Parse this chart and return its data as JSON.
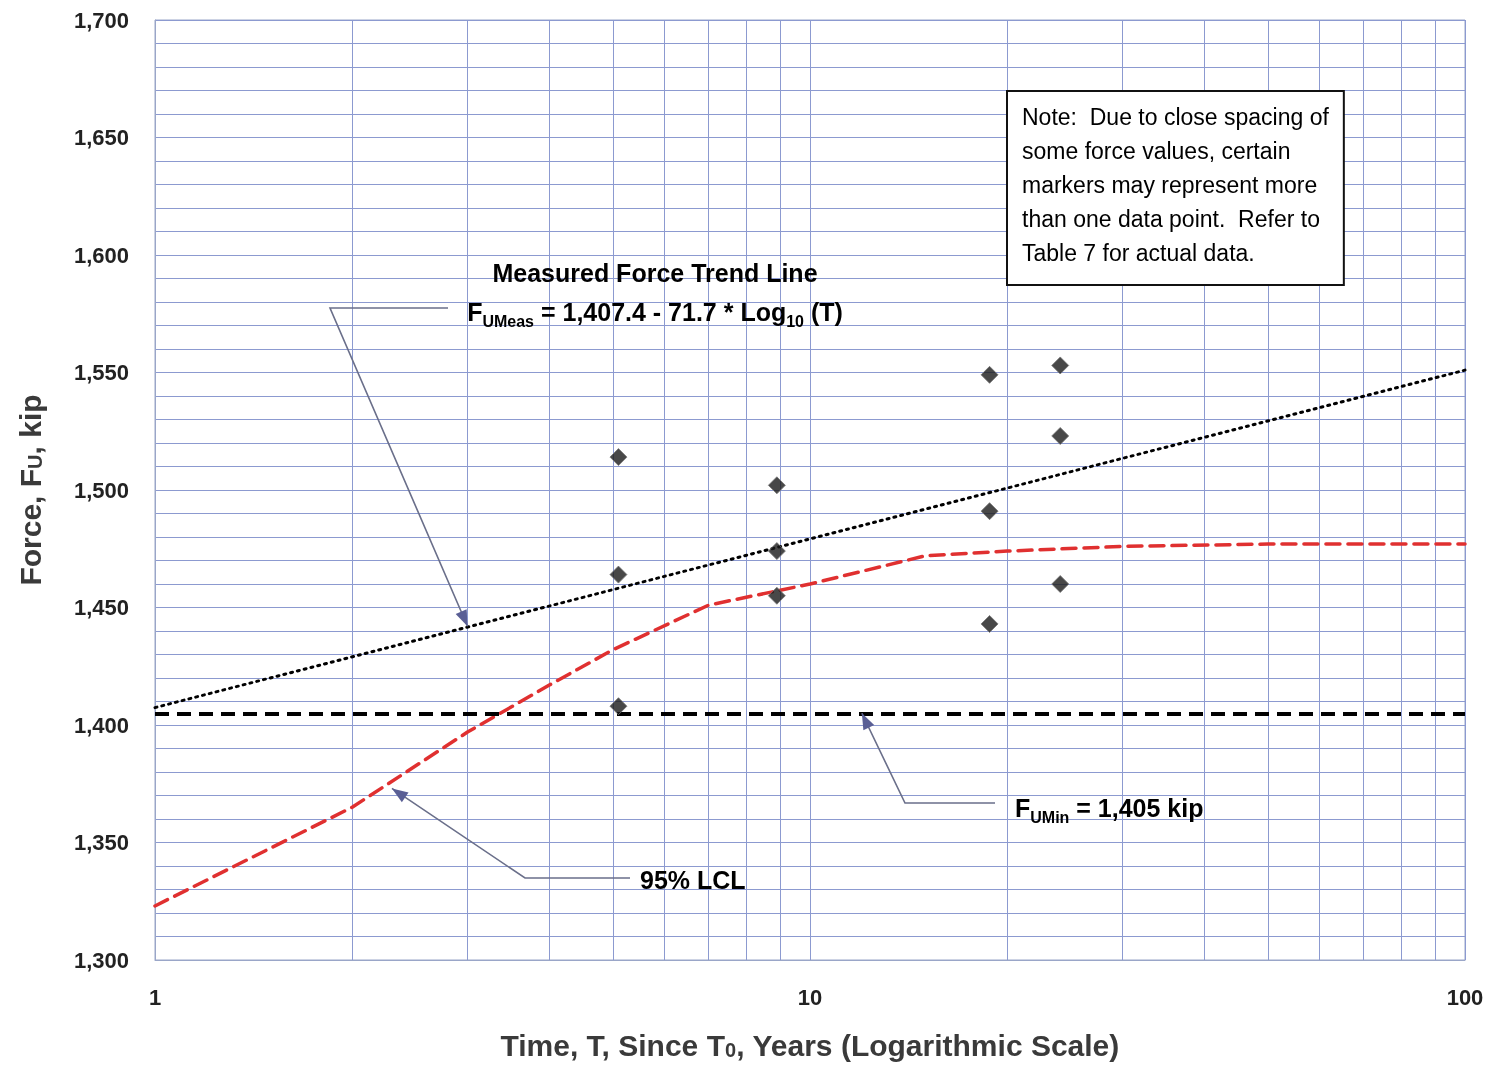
{
  "chart_data": {
    "type": "scatter",
    "xlabel": "Time, T, Since T$_{0}$, Years (Logarithmic Scale)",
    "ylabel": "Force, F$_{U}$, kip",
    "log": "x",
    "xlim": [
      1,
      100
    ],
    "xticks": [
      1,
      {
        "value": 2,
        "label": null
      },
      {
        "value": 3,
        "label": null
      },
      {
        "value": 4,
        "label": null
      },
      {
        "value": 5,
        "label": null
      },
      {
        "value": 6,
        "label": null
      },
      {
        "value": 7,
        "label": null
      },
      {
        "value": 8,
        "label": null
      },
      {
        "value": 9,
        "label": null
      },
      10,
      {
        "value": 20,
        "label": null
      },
      {
        "value": 30,
        "label": null
      },
      {
        "value": 40,
        "label": null
      },
      {
        "value": 50,
        "label": null
      },
      {
        "value": 60,
        "label": null
      },
      {
        "value": 70,
        "label": null
      },
      {
        "value": 80,
        "label": null
      },
      {
        "value": 90,
        "label": null
      },
      100
    ],
    "ylim": [
      1300,
      1700
    ],
    "yticks": [
      {
        "value": 1300,
        "label": "1,300"
      },
      {
        "value": 1310,
        "label": null
      },
      {
        "value": 1320,
        "label": null
      },
      {
        "value": 1330,
        "label": null
      },
      {
        "value": 1340,
        "label": null
      },
      {
        "value": 1350,
        "label": "1,350"
      },
      {
        "value": 1360,
        "label": null
      },
      {
        "value": 1370,
        "label": null
      },
      {
        "value": 1380,
        "label": null
      },
      {
        "value": 1390,
        "label": null
      },
      {
        "value": 1400,
        "label": "1,400"
      },
      {
        "value": 1410,
        "label": null
      },
      {
        "value": 1420,
        "label": null
      },
      {
        "value": 1430,
        "label": null
      },
      {
        "value": 1440,
        "label": null
      },
      {
        "value": 1450,
        "label": "1,450"
      },
      {
        "value": 1460,
        "label": null
      },
      {
        "value": 1470,
        "label": null
      },
      {
        "value": 1480,
        "label": null
      },
      {
        "value": 1490,
        "label": null
      },
      {
        "value": 1500,
        "label": "1,500"
      },
      {
        "value": 1510,
        "label": null
      },
      {
        "value": 1520,
        "label": null
      },
      {
        "value": 1530,
        "label": null
      },
      {
        "value": 1540,
        "label": null
      },
      {
        "value": 1550,
        "label": "1,550"
      },
      {
        "value": 1560,
        "label": null
      },
      {
        "value": 1570,
        "label": null
      },
      {
        "value": 1580,
        "label": null
      },
      {
        "value": 1590,
        "label": null
      },
      {
        "value": 1600,
        "label": "1,600"
      },
      {
        "value": 1610,
        "label": null
      },
      {
        "value": 1620,
        "label": null
      },
      {
        "value": 1630,
        "label": null
      },
      {
        "value": 1640,
        "label": null
      },
      {
        "value": 1650,
        "label": "1,650"
      },
      {
        "value": 1660,
        "label": null
      },
      {
        "value": 1670,
        "label": null
      },
      {
        "value": 1680,
        "label": null
      },
      {
        "value": 1690,
        "label": null
      },
      {
        "value": 1700,
        "label": "1,700"
      }
    ],
    "grid": true,
    "series": [
      {
        "marker": "diamond",
        "color": "#1a1a1a",
        "x": [
          5.1,
          5.1,
          5.1,
          8.9,
          8.9,
          8.9,
          18.8,
          18.8,
          18.8,
          24.1,
          24.1,
          24.1
        ],
        "values": [
          1514,
          1464,
          1408,
          1502,
          1474,
          1455,
          1549,
          1491,
          1443,
          1553,
          1523,
          1460
        ]
      },
      {
        "type": "line",
        "marker": "none",
        "line_style": "dotted",
        "color": "#000000",
        "x": [
          1,
          100
        ],
        "values": [
          1407.4,
          1551
        ]
      },
      {
        "type": "line",
        "marker": "none",
        "line_style": "dashed",
        "color": "#e03030",
        "x": [
          1,
          2,
          3,
          4,
          5,
          7,
          10,
          15,
          20,
          30,
          50,
          100
        ],
        "values": [
          1323,
          1365,
          1397,
          1417,
          1432,
          1451,
          1460,
          1472,
          1474,
          1476,
          1477,
          1477
        ]
      }
    ],
    "ref_lines": [
      {
        "axis": "y",
        "value": 1405,
        "color": "#000000",
        "line_style": "dashed"
      }
    ],
    "annotations": [
      "Measured Force Trend Line",
      {
        "text": "F$_{UMeas}$ = 1,407.4 - 71.7 * Log$_{10}$ (T)",
        "x": 3,
        "y": 1442
      },
      {
        "text": "F$_{UMin}$ = 1,405 kip",
        "x": 12,
        "y": 1405
      },
      {
        "text": "95% LCL",
        "x": 2.3,
        "y": 1373
      },
      "Note:  Due to close spacing of\nsome force values, certain\nmarkers may represent more\nthan one data point.  Refer to\nTable 7 for actual data."
    ]
  }
}
